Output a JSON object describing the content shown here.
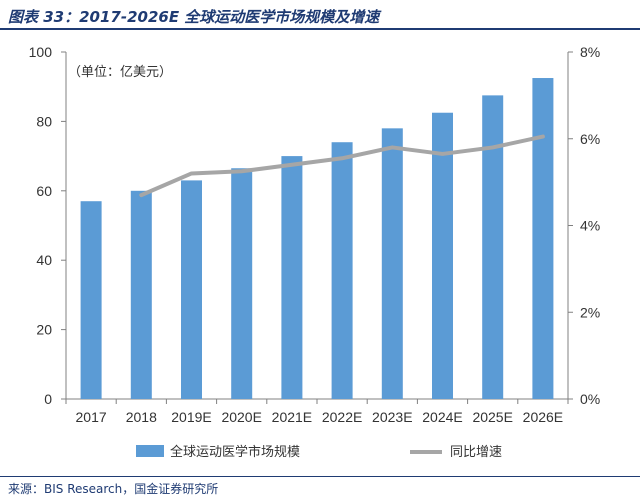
{
  "title": "图表 33：2017-2026E 全球运动医学市场规模及增速",
  "source": "来源：BIS Research，国金证券研究所",
  "chart_data": {
    "type": "bar",
    "categories": [
      "2017",
      "2018",
      "2019E",
      "2020E",
      "2021E",
      "2022E",
      "2023E",
      "2024E",
      "2025E",
      "2026E"
    ],
    "series": [
      {
        "name": "全球运动医学市场规模",
        "type": "bar",
        "axis": "left",
        "color": "#5b9bd5",
        "values": [
          57,
          60,
          63,
          66.5,
          70,
          74,
          78,
          82.5,
          87.5,
          92.5
        ]
      },
      {
        "name": "同比增速",
        "type": "line",
        "axis": "right",
        "color": "#a6a6a6",
        "values": [
          null,
          4.7,
          5.2,
          5.25,
          5.4,
          5.55,
          5.8,
          5.65,
          5.8,
          6.05
        ]
      }
    ],
    "unit_note": "（单位：亿美元）",
    "y_left": {
      "min": 0,
      "max": 100,
      "ticks": [
        "0",
        "20",
        "40",
        "60",
        "80",
        "100"
      ]
    },
    "y_right": {
      "min": 0,
      "max": 8,
      "ticks": [
        "0%",
        "2%",
        "4%",
        "6%",
        "8%"
      ]
    },
    "legend_placement": "bottom",
    "grid": false
  }
}
